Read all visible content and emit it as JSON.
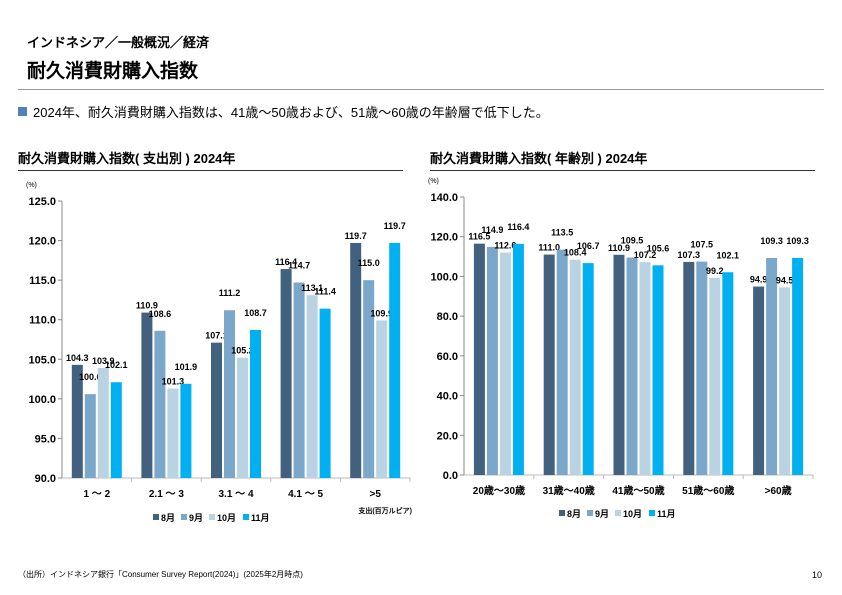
{
  "header": {
    "breadcrumb": "インドネシア／一般概況／経済",
    "title": "耐久消費財購入指数"
  },
  "summary": "2024年、耐久消費財購入指数は、41歳～50歳および、51歳～60歳の年齢層で低下した。",
  "footer": {
    "source": "（出所）インドネシア銀行「Consumer Survey Report(2024)」(2025年2月時点)",
    "page": "10"
  },
  "colors": {
    "8月": "#41617f",
    "9月": "#7ba7cb",
    "10月": "#b9d3e3",
    "11月": "#00b0f0"
  },
  "chart_data": [
    {
      "type": "bar",
      "title": "耐久消費財購入指数( 支出別 ) 2024年",
      "unit": "(%)",
      "xlabel": "支出(百万ルピア)",
      "ylim": [
        90,
        125
      ],
      "yticks": [
        90,
        95,
        100,
        105,
        110,
        115,
        120,
        125
      ],
      "ytick_labels": [
        "90.0",
        "95.0",
        "100.0",
        "105.0",
        "110.0",
        "115.0",
        "120.0",
        "125.0"
      ],
      "categories": [
        "1 ～ 2",
        "2.1 ～ 3",
        "3.1 ～ 4",
        "4.1 ～ 5",
        ">5"
      ],
      "legend": "bottom",
      "series": [
        {
          "name": "8月",
          "color": "#41617f",
          "values": [
            104.3,
            110.9,
            107.1,
            116.4,
            119.7
          ]
        },
        {
          "name": "9月",
          "color": "#7ba7cb",
          "values": [
            100.6,
            108.6,
            111.2,
            114.7,
            115.0
          ]
        },
        {
          "name": "10月",
          "color": "#b9d3e3",
          "values": [
            103.9,
            101.3,
            105.2,
            113.1,
            109.9
          ]
        },
        {
          "name": "11月",
          "color": "#00b0f0",
          "values": [
            102.1,
            101.9,
            108.7,
            111.4,
            119.7
          ]
        }
      ]
    },
    {
      "type": "bar",
      "title": "耐久消費財購入指数( 年齢別 ) 2024年",
      "unit": "(%)",
      "xlabel": "",
      "ylim": [
        0,
        140
      ],
      "yticks": [
        0,
        20,
        40,
        60,
        80,
        100,
        120,
        140
      ],
      "ytick_labels": [
        "0.0",
        "20.0",
        "40.0",
        "60.0",
        "80.0",
        "100.0",
        "120.0",
        "140.0"
      ],
      "categories": [
        "20歳～30歳",
        "31歳～40歳",
        "41歳～50歳",
        "51歳～60歳",
        ">60歳"
      ],
      "legend": "bottom",
      "series": [
        {
          "name": "8月",
          "color": "#41617f",
          "values": [
            116.5,
            111.0,
            110.9,
            107.3,
            94.9
          ]
        },
        {
          "name": "9月",
          "color": "#7ba7cb",
          "values": [
            114.9,
            113.5,
            109.5,
            107.5,
            109.3
          ]
        },
        {
          "name": "10月",
          "color": "#b9d3e3",
          "values": [
            112.0,
            108.4,
            107.2,
            99.2,
            94.5
          ]
        },
        {
          "name": "11月",
          "color": "#00b0f0",
          "values": [
            116.4,
            106.7,
            105.6,
            102.1,
            109.3
          ]
        }
      ]
    }
  ]
}
